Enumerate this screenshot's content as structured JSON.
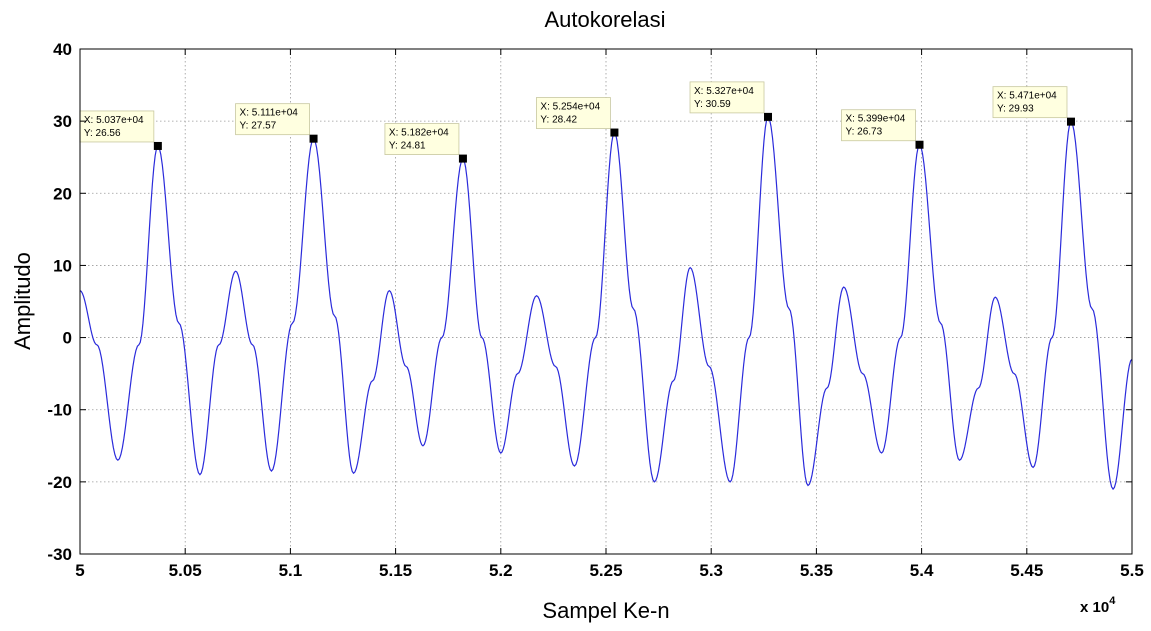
{
  "chart_data": {
    "type": "line",
    "title": "Autokorelasi",
    "xlabel": "Sampel Ke-n",
    "ylabel": "Amplitudo",
    "x_multiplier": "x 10",
    "x_multiplier_exp": "4",
    "xlim": [
      5.0,
      5.5
    ],
    "ylim": [
      -30,
      40
    ],
    "xticks": [
      5.0,
      5.05,
      5.1,
      5.15,
      5.2,
      5.25,
      5.3,
      5.35,
      5.4,
      5.45,
      5.5
    ],
    "xtick_labels": [
      "5",
      "5.05",
      "5.1",
      "5.15",
      "5.2",
      "5.25",
      "5.3",
      "5.35",
      "5.4",
      "5.45",
      "5.5"
    ],
    "yticks": [
      -30,
      -20,
      -10,
      0,
      10,
      20,
      30,
      40
    ],
    "ytick_labels": [
      "-30",
      "-20",
      "-10",
      "0",
      "10",
      "20",
      "30",
      "40"
    ],
    "grid": true,
    "line_color": "#2b2bdb",
    "series": [
      {
        "x": [
          5.0,
          5.008,
          5.018,
          5.028,
          5.037,
          5.047,
          5.057,
          5.066,
          5.074,
          5.082,
          5.091,
          5.101,
          5.111,
          5.121,
          5.13,
          5.139,
          5.147,
          5.155,
          5.163,
          5.172,
          5.182,
          5.191,
          5.2,
          5.208,
          5.217,
          5.226,
          5.235,
          5.245,
          5.254,
          5.263,
          5.273,
          5.282,
          5.29,
          5.299,
          5.309,
          5.318,
          5.327,
          5.337,
          5.346,
          5.355,
          5.363,
          5.372,
          5.381,
          5.39,
          5.399,
          5.409,
          5.418,
          5.427,
          5.435,
          5.444,
          5.453,
          5.462,
          5.471,
          5.481,
          5.491,
          5.5
        ],
        "y": [
          6.5,
          -1,
          -17,
          -1,
          26.56,
          2,
          -19,
          -1,
          9.2,
          -1,
          -18.5,
          2,
          27.57,
          3,
          -18.8,
          -6,
          6.5,
          -4,
          -15,
          0,
          24.81,
          0,
          -16,
          -5,
          5.8,
          -4,
          -17.8,
          0,
          28.42,
          4,
          -20,
          -6,
          9.7,
          -4,
          -20,
          0,
          30.59,
          4,
          -20.5,
          -7,
          7,
          -5,
          -16,
          0,
          26.73,
          2,
          -17,
          -7,
          5.6,
          -5,
          -18,
          0,
          29.93,
          4,
          -21,
          -3
        ]
      }
    ],
    "datatips": [
      {
        "x": 5.037,
        "y": 26.56,
        "x_text": "X: 5.037e+04",
        "y_text": "Y: 26.56"
      },
      {
        "x": 5.111,
        "y": 27.57,
        "x_text": "X: 5.111e+04",
        "y_text": "Y: 27.57"
      },
      {
        "x": 5.182,
        "y": 24.81,
        "x_text": "X: 5.182e+04",
        "y_text": "Y: 24.81"
      },
      {
        "x": 5.254,
        "y": 28.42,
        "x_text": "X: 5.254e+04",
        "y_text": "Y: 28.42"
      },
      {
        "x": 5.327,
        "y": 30.59,
        "x_text": "X: 5.327e+04",
        "y_text": "Y: 30.59"
      },
      {
        "x": 5.399,
        "y": 26.73,
        "x_text": "X: 5.399e+04",
        "y_text": "Y: 26.73"
      },
      {
        "x": 5.471,
        "y": 29.93,
        "x_text": "X: 5.471e+04",
        "y_text": "Y: 29.93"
      }
    ]
  }
}
